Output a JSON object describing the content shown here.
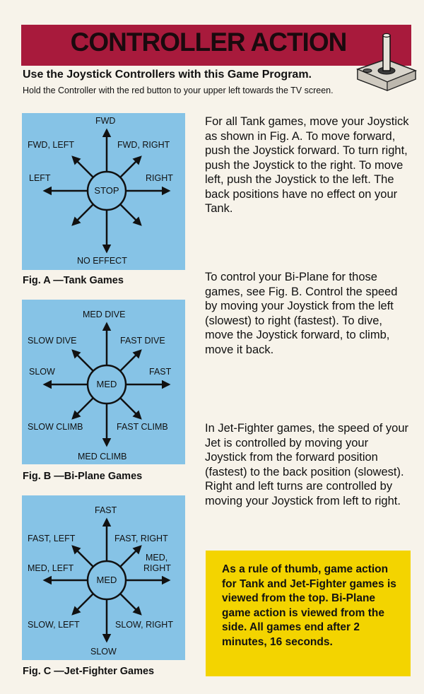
{
  "header": {
    "title": "CONTROLLER ACTION",
    "subtitle": "Use the Joystick Controllers with this Game Program.",
    "instruction": "Hold the Controller with the red button to your upper left towards the TV screen."
  },
  "figures": [
    {
      "caption": "Fig. A —Tank Games",
      "center": "STOP",
      "labels": {
        "top": "FWD",
        "top_left": "FWD, LEFT",
        "top_right": "FWD, RIGHT",
        "left": "LEFT",
        "right": "RIGHT",
        "bottom": "NO EFFECT"
      }
    },
    {
      "caption": "Fig. B —Bi-Plane Games",
      "center": "MED",
      "labels": {
        "top": "MED DIVE",
        "top_left": "SLOW DIVE",
        "top_right": "FAST DIVE",
        "left": "SLOW",
        "right": "FAST",
        "bottom_left": "SLOW CLIMB",
        "bottom_right": "FAST CLIMB",
        "bottom": "MED CLIMB"
      }
    },
    {
      "caption": "Fig. C —Jet-Fighter Games",
      "center": "MED",
      "labels": {
        "top": "FAST",
        "top_left": "FAST, LEFT",
        "top_right": "FAST, RIGHT",
        "left": "MED, LEFT",
        "right_line1": "MED,",
        "right_line2": "RIGHT",
        "bottom_left": "SLOW, LEFT",
        "bottom_right": "SLOW, RIGHT",
        "bottom": "SLOW"
      }
    }
  ],
  "paragraphs": {
    "tank": "For all Tank games, move your Joystick as shown in Fig. A. To move forward, push the Joystick forward. To turn right, push the Joystick to the right. To move left, push the Joystick to the left. The back positions have no effect on your Tank.",
    "biplane": "To control your Bi-Plane for those games, see Fig. B. Control the speed by moving your Joystick from the left (slowest) to right (fastest). To dive, move the Joystick forward, to climb, move it back.",
    "jet": "In Jet-Fighter games, the speed of your Jet is controlled by moving your Joystick from the forward position (fastest) to the back position (slowest). Right and left turns are controlled by moving your Joystick from left to right."
  },
  "note": "As a rule of thumb, game action for Tank and Jet-Fighter games is viewed from the top. Bi-Plane game action is viewed from the side. All games end after 2 minutes, 16 seconds.",
  "colors": {
    "banner": "#a81a3c",
    "figure_bg": "#86c3e6",
    "note_bg": "#f3d400"
  }
}
